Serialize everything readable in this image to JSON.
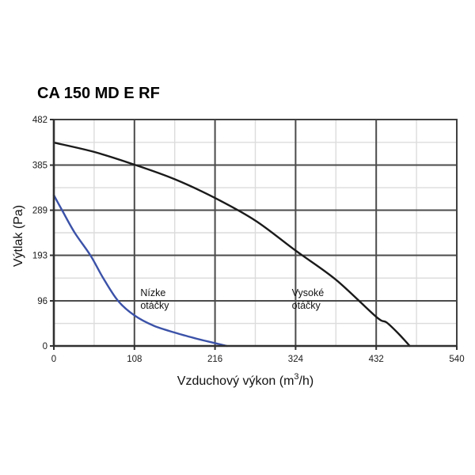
{
  "page": {
    "background": "#ffffff"
  },
  "chart_data": {
    "type": "line",
    "title": "CA 150 MD E RF",
    "xlabel": "Vzduchový výkon (m³/h)",
    "xlabel_parts": {
      "pre": "Vzduchový výkon (m",
      "sup": "3",
      "post": "/h)"
    },
    "ylabel": "Výtlak (Pa)",
    "x_ticks": [
      0,
      108,
      216,
      324,
      432,
      540
    ],
    "y_ticks": [
      0,
      96,
      193,
      289,
      385,
      482
    ],
    "xlim": [
      0,
      540
    ],
    "ylim": [
      0,
      482
    ],
    "grid": {
      "major_color": "#4b4b4b",
      "minor_color": "#dcdcdc",
      "minor": true,
      "legend": "none"
    },
    "series": [
      {
        "name": "Vysoké otáčky",
        "key": "high-speed",
        "color": "#1a1a1a",
        "points": [
          [
            0,
            433
          ],
          [
            54,
            413
          ],
          [
            108,
            386
          ],
          [
            162,
            355
          ],
          [
            216,
            315
          ],
          [
            270,
            267
          ],
          [
            324,
            203
          ],
          [
            378,
            141
          ],
          [
            432,
            62
          ],
          [
            446,
            50
          ],
          [
            462,
            26
          ],
          [
            477,
            0
          ]
        ]
      },
      {
        "name": "Nízke otáčky",
        "key": "low-speed",
        "color": "#3b52a8",
        "points": [
          [
            0,
            321
          ],
          [
            11,
            289
          ],
          [
            28,
            241
          ],
          [
            49,
            193
          ],
          [
            66,
            145
          ],
          [
            86,
            96
          ],
          [
            108,
            65
          ],
          [
            134,
            43
          ],
          [
            163,
            28
          ],
          [
            190,
            16
          ],
          [
            216,
            6
          ],
          [
            232,
            0
          ]
        ]
      }
    ],
    "annotations": [
      {
        "line1": "Nízke",
        "line2": "otáčky",
        "x": 116,
        "y": 106
      },
      {
        "line1": "Vysoké",
        "line2": "otáčky",
        "x": 319,
        "y": 106
      }
    ]
  }
}
